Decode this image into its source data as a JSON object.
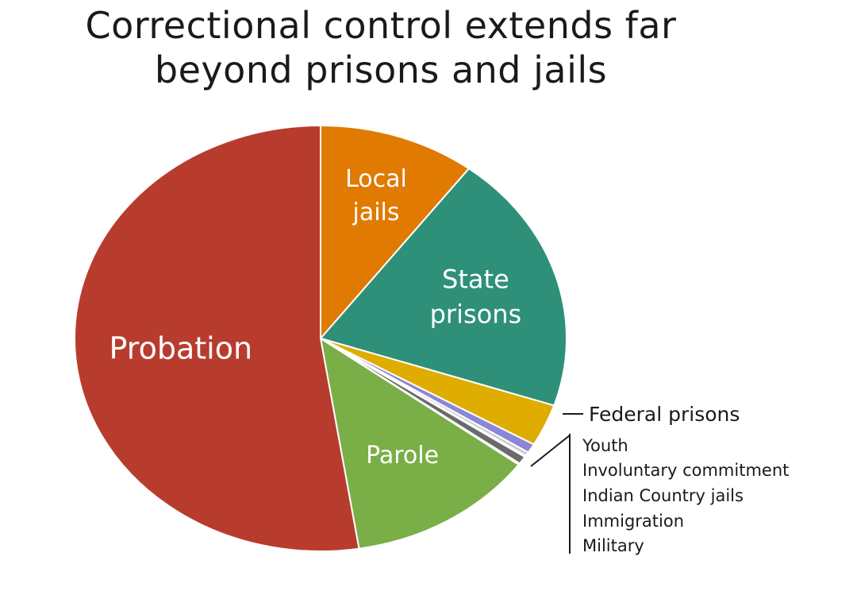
{
  "chart_data": {
    "type": "pie",
    "title": "Correctional control extends far beyond prisons and jails",
    "title_lines": [
      "Correctional control extends far",
      "beyond prisons and jails"
    ],
    "slices": [
      {
        "name": "Local jails",
        "label_lines": [
          "Local",
          "jails"
        ],
        "value": 10.3,
        "color": "#e07a00"
      },
      {
        "name": "State prisons",
        "label_lines": [
          "State",
          "prisons"
        ],
        "value": 19.8,
        "color": "#2e9078"
      },
      {
        "name": "Federal prisons",
        "label_lines": [
          "Federal prisons"
        ],
        "value": 3.2,
        "color": "#dfac00"
      },
      {
        "name": "Youth",
        "label_lines": [
          "Youth"
        ],
        "value": 0.7,
        "color": "#8c86d8"
      },
      {
        "name": "Involuntary commitment",
        "label_lines": [
          "Involuntary commitment"
        ],
        "value": 0.3,
        "color": "#cccccc"
      },
      {
        "name": "Indian Country jails",
        "label_lines": [
          "Indian Country jails"
        ],
        "value": 0.1,
        "color": "#a09090"
      },
      {
        "name": "Immigration",
        "label_lines": [
          "Immigration"
        ],
        "value": 0.6,
        "color": "#6a6a6a"
      },
      {
        "name": "Military",
        "label_lines": [
          "Military"
        ],
        "value": 0.1,
        "color": "#444444"
      },
      {
        "name": "Parole",
        "label_lines": [
          "Parole"
        ],
        "value": 12.4,
        "color": "#7aae47"
      },
      {
        "name": "Probation",
        "label_lines": [
          "Probation"
        ],
        "value": 52.5,
        "color": "#b83c2e"
      }
    ],
    "external_labels": {
      "federal": "Federal prisons",
      "small_group": [
        "Youth",
        "Involuntary commitment",
        "Indian Country jails",
        "Immigration",
        "Military"
      ]
    },
    "legend": "none"
  }
}
